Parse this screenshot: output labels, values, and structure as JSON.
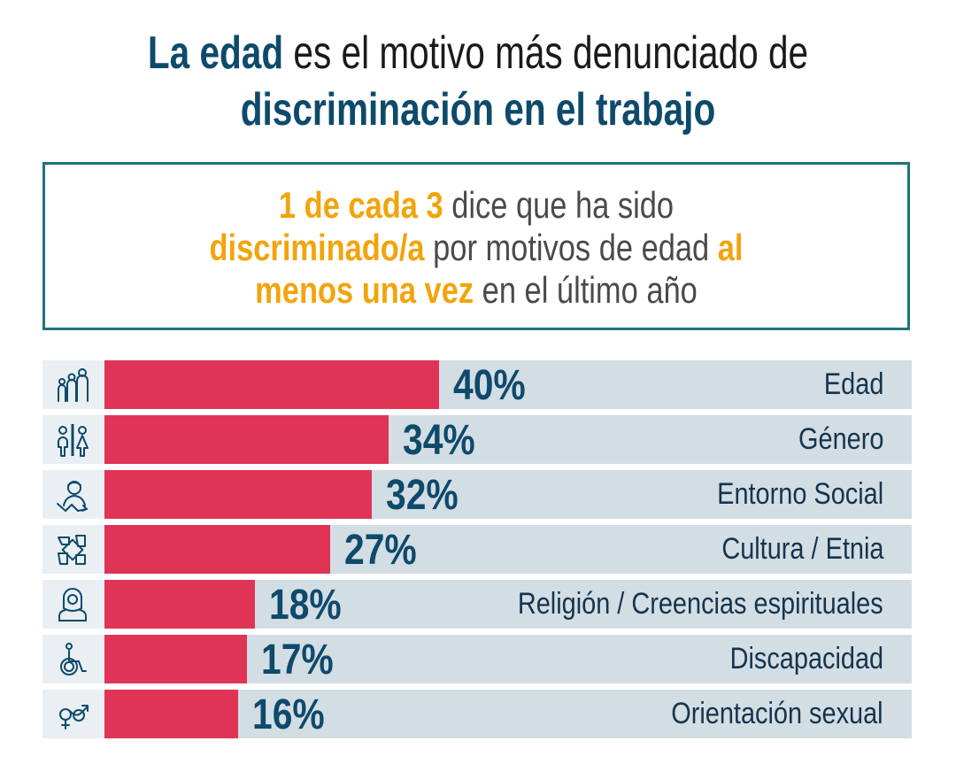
{
  "title": {
    "line1_highlight": "La edad",
    "line1_rest": " es el motivo más denunciado de",
    "line2_highlight": "discriminación en el trabajo"
  },
  "callout": {
    "part1_highlight": "1 de cada 3",
    "part2": " dice que ha sido",
    "part3_highlight": "discriminado/a",
    "part4": " por motivos de edad ",
    "part5_highlight": "al",
    "part6_highlight": "menos una vez",
    "part7": " en el último año"
  },
  "colors": {
    "title_blue": "#0d4a6b",
    "accent_orange": "#f2a40c",
    "bar_red": "#e03456",
    "track_gray": "#d3dde4",
    "border_teal": "#1d7480"
  },
  "chart_data": {
    "type": "bar",
    "orientation": "horizontal",
    "title": "La edad es el motivo más denunciado de discriminación en el trabajo",
    "xlabel": "",
    "ylabel": "",
    "xlim": [
      0,
      96.5
    ],
    "unit": "%",
    "categories": [
      "Edad",
      "Género",
      "Entorno Social",
      "Cultura / Etnia",
      "Religión / Creencias espirituales",
      "Discapacidad",
      "Orientación sexual"
    ],
    "values": [
      40,
      34,
      32,
      27,
      18,
      17,
      16
    ],
    "value_labels": [
      "40%",
      "34%",
      "32%",
      "27%",
      "18%",
      "17%",
      "16%"
    ],
    "icons": [
      "family-icon",
      "gender-icon",
      "social-decline-icon",
      "hands-circle-icon",
      "hijab-person-icon",
      "wheelchair-icon",
      "gender-symbols-icon"
    ]
  }
}
